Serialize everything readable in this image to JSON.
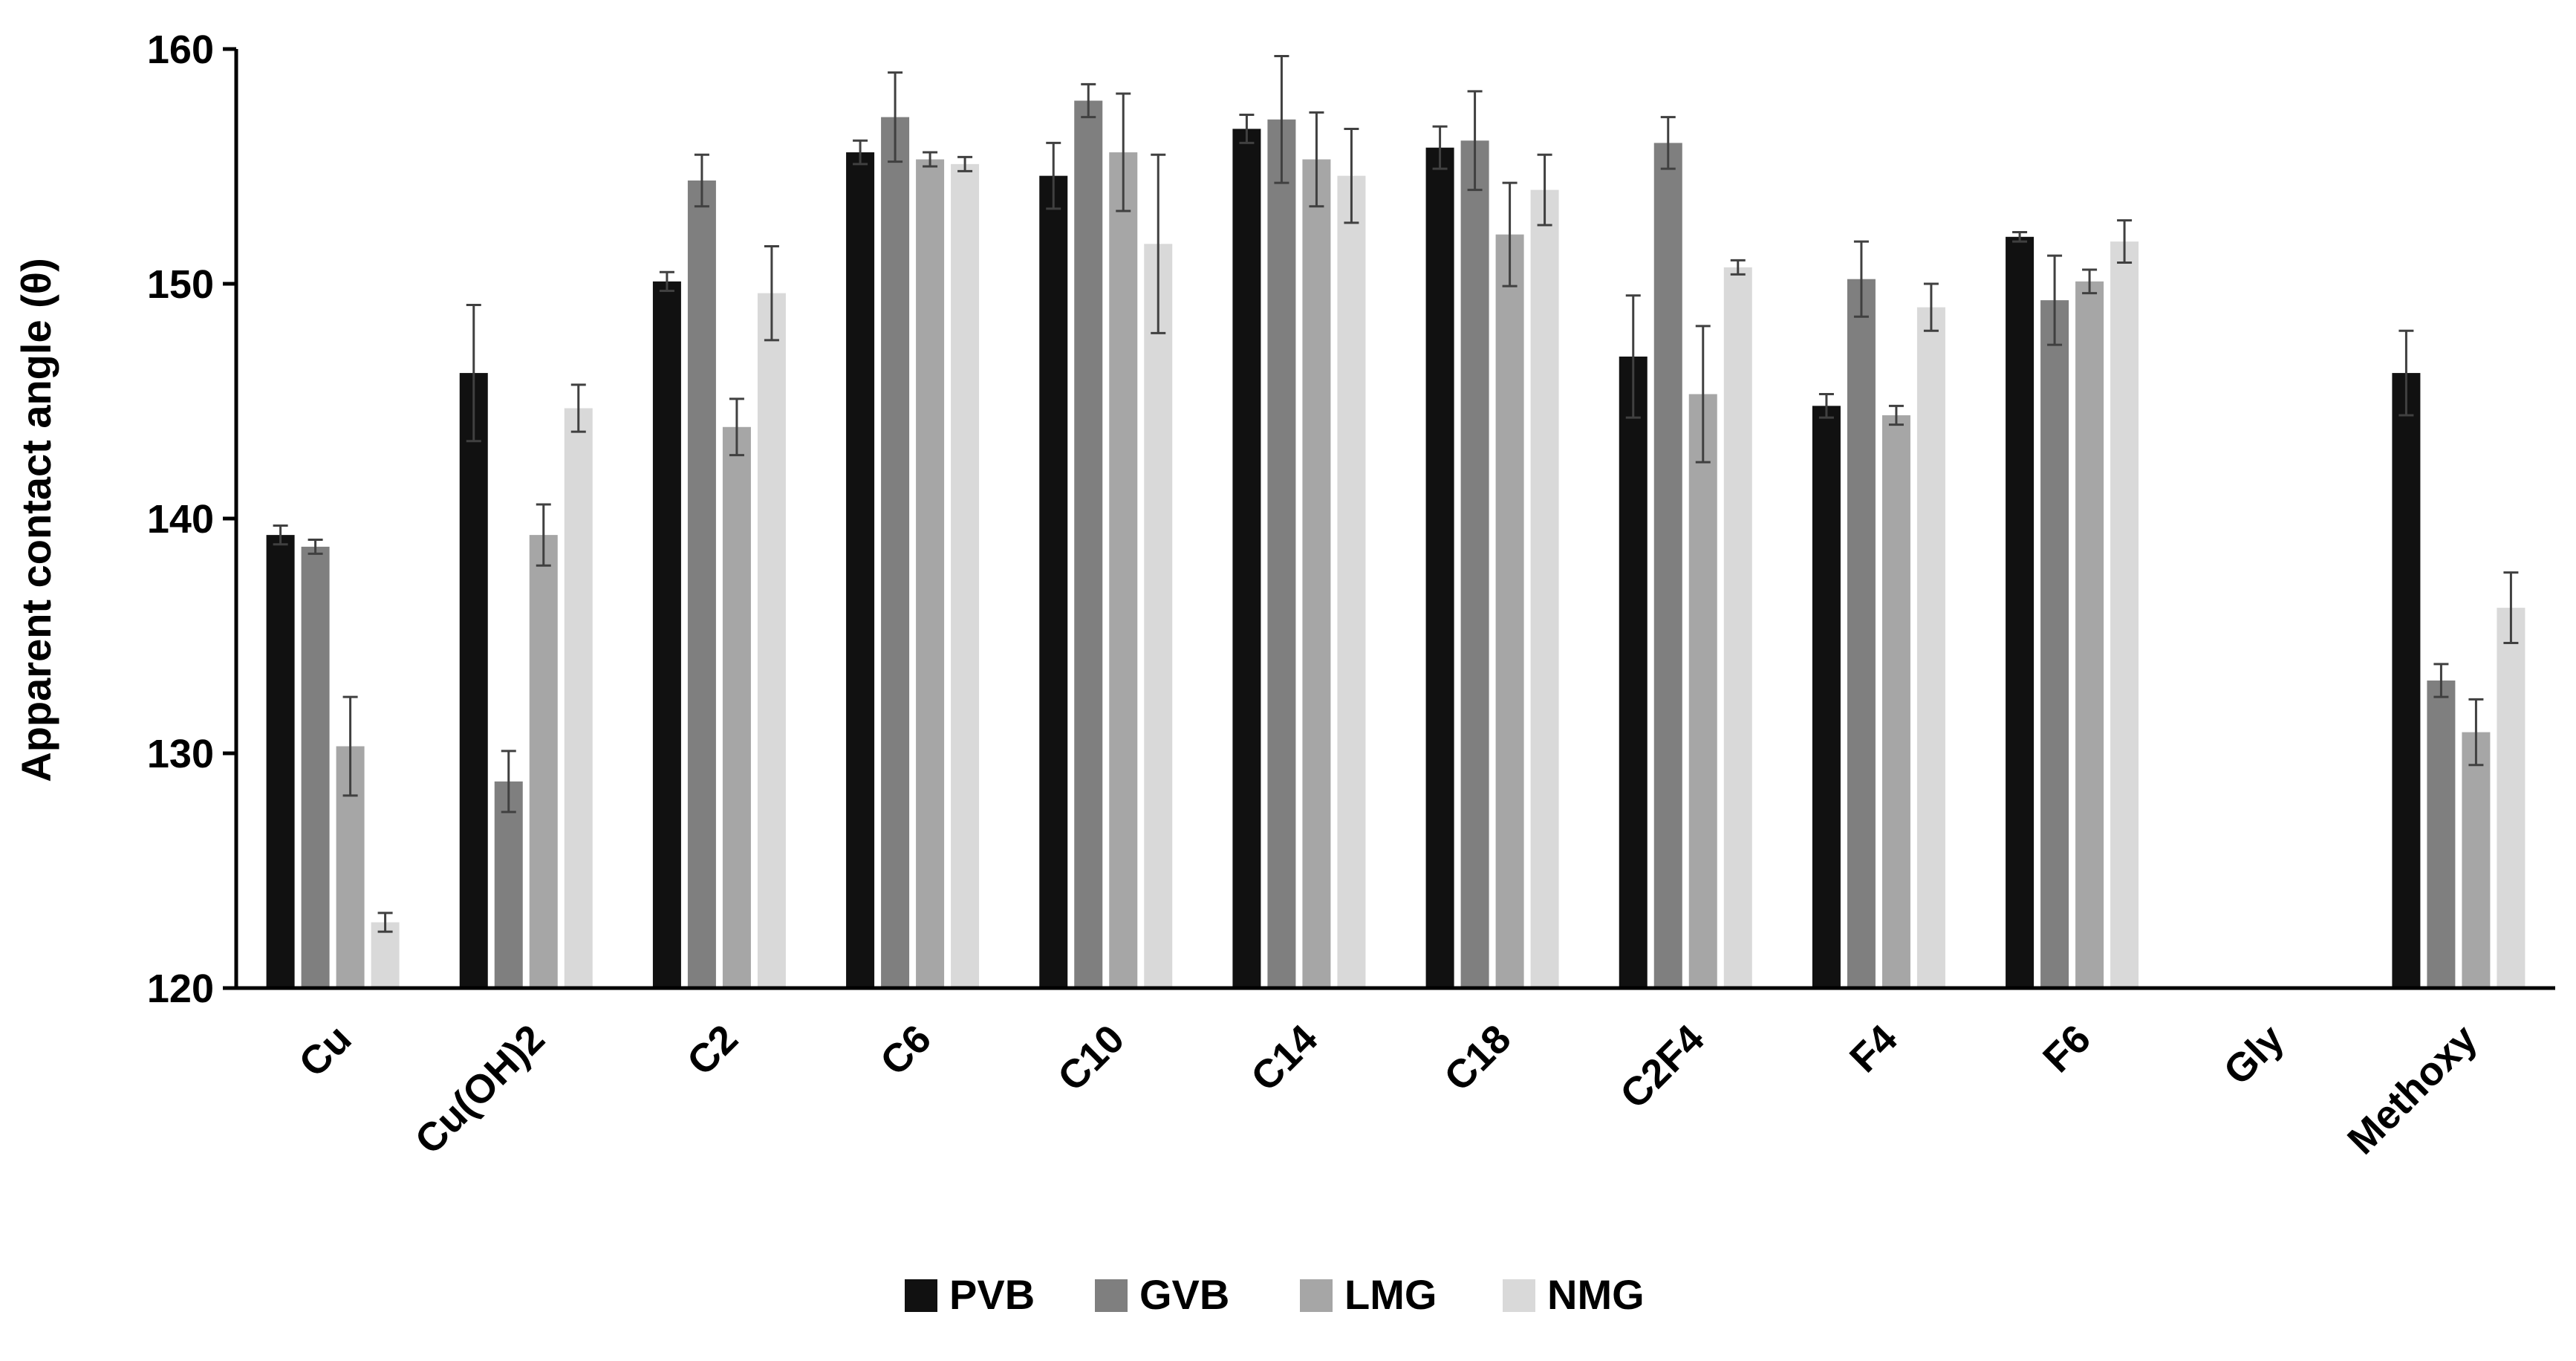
{
  "chart_data": {
    "type": "bar",
    "categories": [
      "Cu",
      "Cu(OH)2",
      "C2",
      "C6",
      "C10",
      "C14",
      "C18",
      "C2F4",
      "F4",
      "F6",
      "Gly",
      "Methoxy"
    ],
    "series": [
      {
        "name": "PVB",
        "color": "#111111",
        "values": [
          139.3,
          146.2,
          150.1,
          155.6,
          154.6,
          156.6,
          155.8,
          146.9,
          144.8,
          152.0,
          null,
          146.2
        ],
        "errors": [
          0.4,
          2.9,
          0.4,
          0.5,
          1.4,
          0.6,
          0.9,
          2.6,
          0.5,
          0.2,
          null,
          1.8
        ]
      },
      {
        "name": "GVB",
        "color": "#7f7f7f",
        "values": [
          138.8,
          128.8,
          154.4,
          157.1,
          157.8,
          157.0,
          156.1,
          156.0,
          150.2,
          149.3,
          null,
          133.1
        ],
        "errors": [
          0.3,
          1.3,
          1.1,
          1.9,
          0.7,
          2.7,
          2.1,
          1.1,
          1.6,
          1.9,
          null,
          0.7
        ]
      },
      {
        "name": "LMG",
        "color": "#a6a6a6",
        "values": [
          130.3,
          139.3,
          143.9,
          155.3,
          155.6,
          155.3,
          152.1,
          145.3,
          144.4,
          150.1,
          null,
          130.9
        ],
        "errors": [
          2.1,
          1.3,
          1.2,
          0.3,
          2.5,
          2.0,
          2.2,
          2.9,
          0.4,
          0.5,
          null,
          1.4
        ]
      },
      {
        "name": "NMG",
        "color": "#d9d9d9",
        "values": [
          122.8,
          144.7,
          149.6,
          155.1,
          151.7,
          154.6,
          154.0,
          150.7,
          149.0,
          151.8,
          null,
          136.2
        ],
        "errors": [
          0.4,
          1.0,
          2.0,
          0.3,
          3.8,
          2.0,
          1.5,
          0.3,
          1.0,
          0.9,
          null,
          1.5
        ]
      }
    ],
    "ylabel": "Apparent contact angle (θ)",
    "xlabel": "",
    "ylim": [
      120,
      160
    ],
    "yticks": [
      120,
      130,
      140,
      150,
      160
    ],
    "grid": false,
    "legend_position": "bottom-center",
    "error_bar_color": "#404040"
  }
}
